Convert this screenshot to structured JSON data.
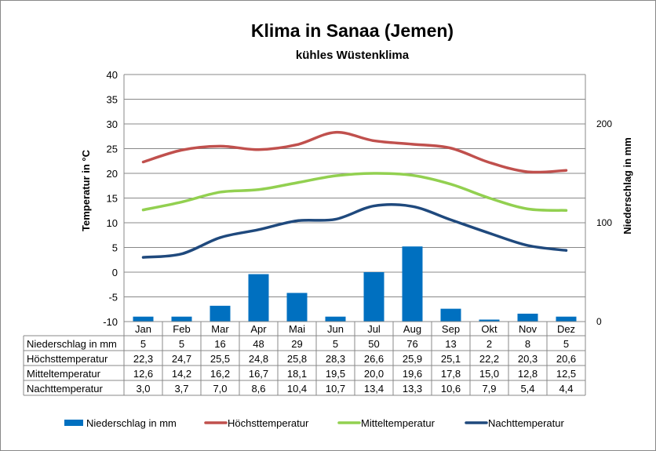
{
  "chart_data": {
    "type": "bar+line",
    "title": "Klima in Sanaa (Jemen)",
    "subtitle": "kühles Wüstenklima",
    "ylabel": "Temperatur in °C",
    "y2label": "Niederschlag in mm",
    "ylim": [
      -10,
      40
    ],
    "yticks": [
      -10,
      -5,
      0,
      5,
      10,
      15,
      20,
      25,
      30,
      35,
      40
    ],
    "y2lim": [
      0,
      250
    ],
    "y2ticks": [
      0,
      100,
      200
    ],
    "grid": true,
    "legend_position": "bottom",
    "categories": [
      "Jan",
      "Feb",
      "Mar",
      "Apr",
      "Mai",
      "Jun",
      "Jul",
      "Aug",
      "Sep",
      "Okt",
      "Nov",
      "Dez"
    ],
    "series": [
      {
        "name": "Niederschlag in mm",
        "type": "bar",
        "axis": "right",
        "color": "#0070C0",
        "values": [
          5,
          5,
          16,
          48,
          29,
          5,
          50,
          76,
          13,
          2,
          8,
          5
        ],
        "labels": [
          "5",
          "5",
          "16",
          "48",
          "29",
          "5",
          "50",
          "76",
          "13",
          "2",
          "8",
          "5"
        ]
      },
      {
        "name": "Höchsttemperatur",
        "type": "line",
        "axis": "left",
        "color": "#C0504D",
        "values": [
          22.3,
          24.7,
          25.5,
          24.8,
          25.8,
          28.3,
          26.6,
          25.9,
          25.1,
          22.2,
          20.3,
          20.6
        ],
        "labels": [
          "22,3",
          "24,7",
          "25,5",
          "24,8",
          "25,8",
          "28,3",
          "26,6",
          "25,9",
          "25,1",
          "22,2",
          "20,3",
          "20,6"
        ]
      },
      {
        "name": "Mitteltemperatur",
        "type": "line",
        "axis": "left",
        "color": "#92D050",
        "values": [
          12.6,
          14.2,
          16.2,
          16.7,
          18.1,
          19.5,
          20.0,
          19.6,
          17.8,
          15.0,
          12.8,
          12.5
        ],
        "labels": [
          "12,6",
          "14,2",
          "16,2",
          "16,7",
          "18,1",
          "19,5",
          "20,0",
          "19,6",
          "17,8",
          "15,0",
          "12,8",
          "12,5"
        ]
      },
      {
        "name": "Nachttemperatur",
        "type": "line",
        "axis": "left",
        "color": "#1F497D",
        "values": [
          3.0,
          3.7,
          7.0,
          8.6,
          10.4,
          10.7,
          13.4,
          13.3,
          10.6,
          7.9,
          5.4,
          4.4
        ],
        "labels": [
          "3,0",
          "3,7",
          "7,0",
          "8,6",
          "10,4",
          "10,7",
          "13,4",
          "13,3",
          "10,6",
          "7,9",
          "5,4",
          "4,4"
        ]
      }
    ]
  }
}
